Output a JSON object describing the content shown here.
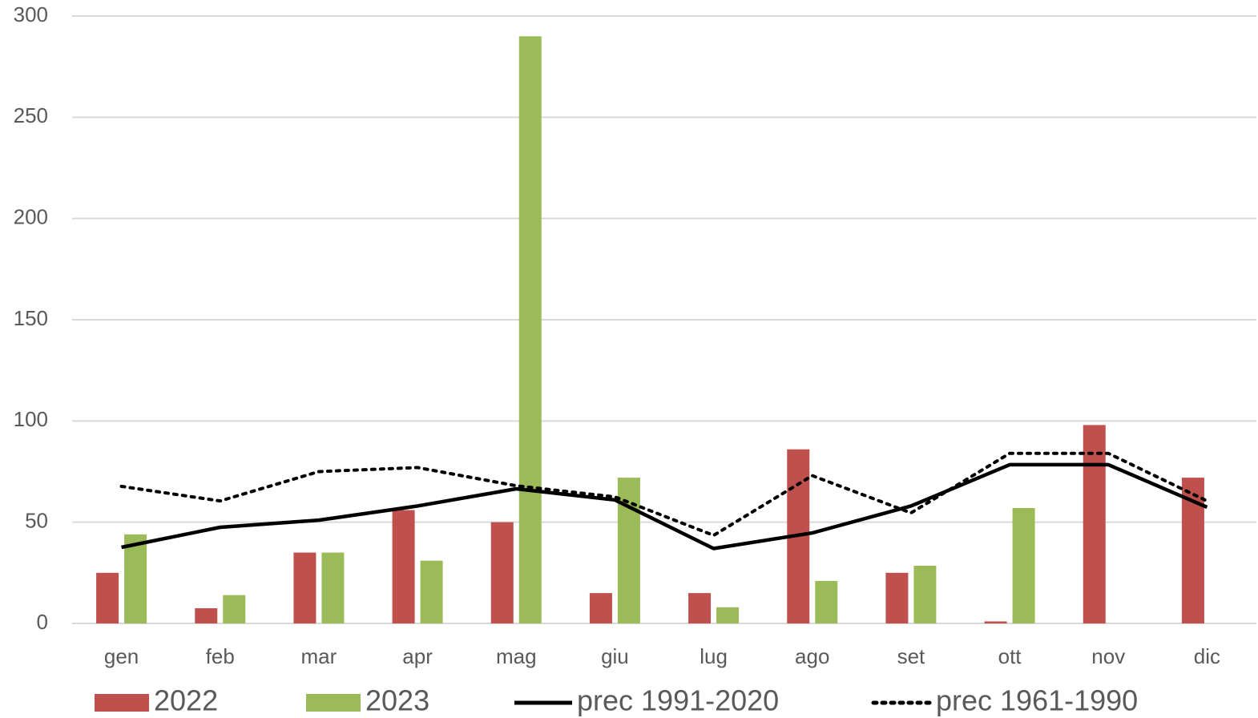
{
  "chart_data": {
    "type": "bar",
    "categories": [
      "gen",
      "feb",
      "mar",
      "apr",
      "mag",
      "giu",
      "lug",
      "ago",
      "set",
      "ott",
      "nov",
      "dic"
    ],
    "series": [
      {
        "name": "2022",
        "type": "bar",
        "color": "#c0504d",
        "values": [
          25,
          7.5,
          35,
          56,
          50,
          15,
          15,
          86,
          25,
          1,
          98,
          72
        ]
      },
      {
        "name": "2023",
        "type": "bar",
        "color": "#9bbb59",
        "values": [
          44,
          14,
          35,
          31,
          290,
          72,
          8,
          21,
          28.5,
          57,
          null,
          null
        ]
      },
      {
        "name": "prec 1991-2020",
        "type": "line",
        "color": "#000000",
        "dash": "solid",
        "values": [
          37.6,
          47.5,
          51,
          58,
          66.5,
          61,
          37,
          44.7,
          58,
          78.4,
          78.4,
          57.4
        ]
      },
      {
        "name": "prec 1961-1990",
        "type": "line",
        "color": "#000000",
        "dash": "dotted",
        "values": [
          67.7,
          60.5,
          75,
          77,
          68,
          62.5,
          43.5,
          73,
          54.6,
          84,
          84,
          60.5
        ]
      }
    ],
    "ylim": [
      0,
      300
    ],
    "yticks": [
      0,
      50,
      100,
      150,
      200,
      250,
      300
    ],
    "grid": true
  }
}
